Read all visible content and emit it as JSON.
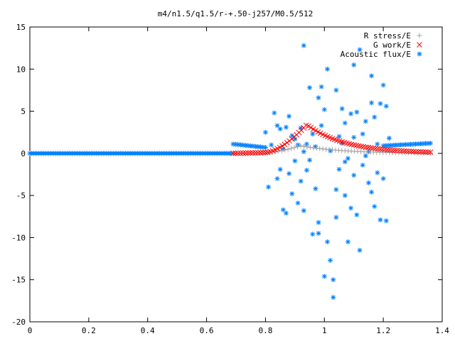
{
  "chart_data": {
    "type": "scatter",
    "title": "m4/n1.5/q1.5/r-+.50-j257/M0.5/512",
    "xlim": [
      0,
      1.4
    ],
    "ylim": [
      -20,
      15
    ],
    "xticks": [
      "0",
      "0.2",
      "0.4",
      "0.6",
      "0.8",
      "1",
      "1.2",
      "1.4"
    ],
    "yticks": [
      "15",
      "10",
      "5",
      "0",
      "-5",
      "-10",
      "-15",
      "-20"
    ],
    "legend_position": "top-right",
    "series": [
      {
        "name": "R stress/E",
        "marker": "+",
        "color": "#a0a0a0",
        "segments": [
          {
            "x0": 0.69,
            "x1": 0.78,
            "points": 10,
            "shape": "line",
            "y": [
              0,
              0
            ]
          },
          {
            "x0": 0.78,
            "x1": 1.36,
            "points": 55,
            "shape": "peak",
            "y_base": 0.0,
            "y_peak": 0.9,
            "x_peak": 0.92,
            "y_end": 0.0
          }
        ]
      },
      {
        "name": "G work/E",
        "marker": "x",
        "color": "#ff0000",
        "segments": [
          {
            "x0": 0.69,
            "x1": 0.8,
            "points": 14,
            "shape": "line",
            "y": [
              0,
              0.1
            ]
          },
          {
            "x0": 0.8,
            "x1": 1.36,
            "points": 70,
            "shape": "peak",
            "y_base": 0.1,
            "y_peak": 3.4,
            "x_peak": 0.94,
            "y_end": 0.0
          }
        ]
      },
      {
        "name": "Acoustic flux/E",
        "marker": "*",
        "color": "#0080ff",
        "segments": [
          {
            "x0": 0.0,
            "x1": 0.69,
            "points": 120,
            "shape": "line",
            "y": [
              0,
              0
            ]
          },
          {
            "x0": 0.69,
            "x1": 0.8,
            "points": 14,
            "shape": "line",
            "y": [
              1.1,
              0.7
            ]
          },
          {
            "x0": 1.2,
            "x1": 1.36,
            "points": 20,
            "shape": "line",
            "y": [
              0.9,
              1.2
            ]
          }
        ],
        "scatter_points": [
          [
            0.8,
            2.5
          ],
          [
            0.81,
            -4.0
          ],
          [
            0.82,
            1.0
          ],
          [
            0.83,
            4.8
          ],
          [
            0.84,
            -3.0
          ],
          [
            0.85,
            2.9
          ],
          [
            0.85,
            -1.9
          ],
          [
            0.86,
            0.5
          ],
          [
            0.86,
            -6.7
          ],
          [
            0.87,
            3.1
          ],
          [
            0.88,
            -2.4
          ],
          [
            0.88,
            4.4
          ],
          [
            0.89,
            -4.8
          ],
          [
            0.9,
            1.7
          ],
          [
            0.9,
            -0.9
          ],
          [
            0.91,
            -5.9
          ],
          [
            0.92,
            3.0
          ],
          [
            0.92,
            -3.3
          ],
          [
            0.93,
            0.2
          ],
          [
            0.93,
            -6.8
          ],
          [
            0.94,
            1.1
          ],
          [
            0.95,
            7.8
          ],
          [
            0.95,
            -0.8
          ],
          [
            0.96,
            2.3
          ],
          [
            0.96,
            -9.6
          ],
          [
            0.97,
            -4.2
          ],
          [
            0.97,
            0.8
          ],
          [
            0.98,
            6.6
          ],
          [
            0.98,
            -8.2
          ],
          [
            0.99,
            3.3
          ],
          [
            1.0,
            -14.6
          ],
          [
            1.0,
            5.2
          ],
          [
            1.01,
            -10.5
          ],
          [
            1.02,
            -12.7
          ],
          [
            1.02,
            0.3
          ],
          [
            1.03,
            -17.1
          ],
          [
            1.03,
            -15.0
          ],
          [
            1.04,
            7.5
          ],
          [
            1.04,
            -4.3
          ],
          [
            1.05,
            2.0
          ],
          [
            1.05,
            -1.9
          ],
          [
            1.06,
            1.2
          ],
          [
            1.07,
            -5.0
          ],
          [
            1.07,
            3.6
          ],
          [
            1.08,
            -10.5
          ],
          [
            1.08,
            -0.6
          ],
          [
            1.09,
            4.7
          ],
          [
            1.09,
            -6.5
          ],
          [
            1.1,
            1.9
          ],
          [
            1.1,
            -2.6
          ],
          [
            1.11,
            4.9
          ],
          [
            1.11,
            -7.3
          ],
          [
            1.12,
            12.3
          ],
          [
            1.12,
            -11.5
          ],
          [
            1.13,
            2.3
          ],
          [
            1.13,
            -1.4
          ],
          [
            1.14,
            3.8
          ],
          [
            1.15,
            -3.5
          ],
          [
            1.15,
            0.2
          ],
          [
            1.16,
            6.0
          ],
          [
            1.16,
            -4.6
          ],
          [
            1.17,
            4.3
          ],
          [
            1.17,
            -6.3
          ],
          [
            1.18,
            1.1
          ],
          [
            1.18,
            -2.3
          ],
          [
            1.19,
            5.9
          ],
          [
            1.19,
            -7.9
          ],
          [
            1.2,
            8.1
          ],
          [
            1.2,
            -3.0
          ],
          [
            1.21,
            5.6
          ],
          [
            1.21,
            -8.0
          ],
          [
            1.22,
            1.8
          ],
          [
            1.1,
            10.5
          ],
          [
            0.91,
            1.0
          ],
          [
            0.84,
            3.3
          ],
          [
            0.99,
            7.9
          ],
          [
            1.06,
            5.3
          ],
          [
            1.14,
            -0.3
          ],
          [
            0.87,
            -7.1
          ],
          [
            0.94,
            -2.0
          ],
          [
            0.93,
            12.8
          ],
          [
            1.01,
            10.0
          ],
          [
            1.07,
            -1.0
          ],
          [
            0.98,
            -9.5
          ],
          [
            1.04,
            -7.6
          ],
          [
            0.89,
            2.1
          ],
          [
            1.16,
            9.2
          ]
        ]
      }
    ]
  }
}
